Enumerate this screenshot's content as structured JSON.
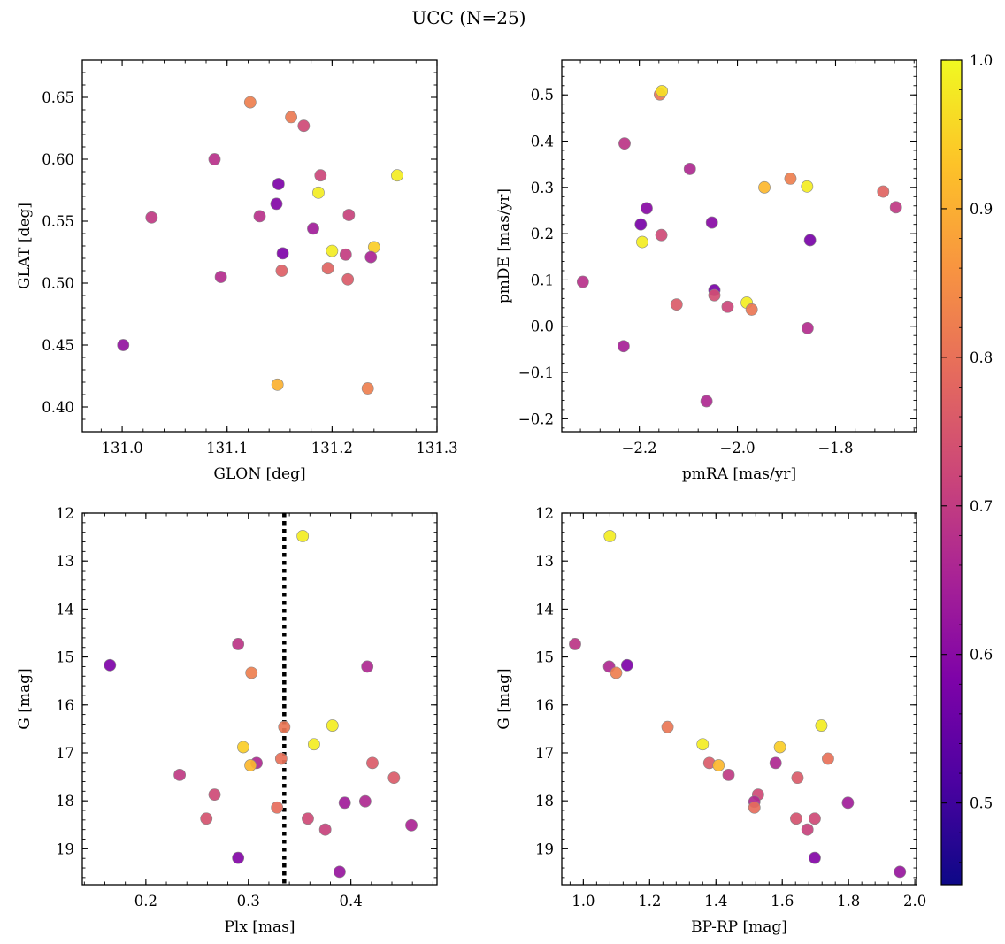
{
  "figure": {
    "title": "UCC (N=25)",
    "cmap": "plasma",
    "vmin": 0.445,
    "vmax": 1.0,
    "vline_plx": 0.335,
    "colors": {
      "point_edge": "#888888",
      "vline": "#000000",
      "frame": "#000000"
    }
  },
  "colorbar": {
    "ticks": [
      0.5,
      0.6,
      0.7,
      0.8,
      0.9,
      1.0
    ],
    "range": [
      0.445,
      1.0
    ]
  },
  "chart_data": [
    {
      "type": "scatter",
      "id": "lb",
      "xlabel": "GLON [deg]",
      "ylabel": "GLAT [deg]",
      "xlim": [
        130.962,
        131.3
      ],
      "ylim": [
        0.38,
        0.68
      ],
      "yinvert": false,
      "xticks": [
        131.0,
        131.1,
        131.2,
        131.3
      ],
      "xtick_labels": [
        "131.0",
        "131.1",
        "131.2",
        "131.3"
      ],
      "yticks": [
        0.4,
        0.45,
        0.5,
        0.55,
        0.6,
        0.65
      ],
      "ytick_labels": [
        "0.40",
        "0.45",
        "0.50",
        "0.55",
        "0.60",
        "0.65"
      ],
      "points": [
        {
          "x": 131.122,
          "y": 0.646,
          "c": 0.78
        },
        {
          "x": 131.161,
          "y": 0.634,
          "c": 0.77
        },
        {
          "x": 131.173,
          "y": 0.627,
          "c": 0.66
        },
        {
          "x": 131.088,
          "y": 0.6,
          "c": 0.6
        },
        {
          "x": 131.262,
          "y": 0.587,
          "c": 0.98
        },
        {
          "x": 131.189,
          "y": 0.587,
          "c": 0.65
        },
        {
          "x": 131.149,
          "y": 0.58,
          "c": 0.48
        },
        {
          "x": 131.187,
          "y": 0.573,
          "c": 0.98
        },
        {
          "x": 131.147,
          "y": 0.564,
          "c": 0.49
        },
        {
          "x": 131.216,
          "y": 0.555,
          "c": 0.64
        },
        {
          "x": 131.131,
          "y": 0.554,
          "c": 0.6
        },
        {
          "x": 131.028,
          "y": 0.553,
          "c": 0.62
        },
        {
          "x": 131.182,
          "y": 0.544,
          "c": 0.55
        },
        {
          "x": 131.24,
          "y": 0.529,
          "c": 0.93
        },
        {
          "x": 131.2,
          "y": 0.526,
          "c": 0.98
        },
        {
          "x": 131.153,
          "y": 0.524,
          "c": 0.48
        },
        {
          "x": 131.213,
          "y": 0.523,
          "c": 0.63
        },
        {
          "x": 131.237,
          "y": 0.521,
          "c": 0.57
        },
        {
          "x": 131.196,
          "y": 0.512,
          "c": 0.72
        },
        {
          "x": 131.152,
          "y": 0.51,
          "c": 0.71
        },
        {
          "x": 131.094,
          "y": 0.505,
          "c": 0.59
        },
        {
          "x": 131.215,
          "y": 0.503,
          "c": 0.7
        },
        {
          "x": 131.001,
          "y": 0.45,
          "c": 0.52
        },
        {
          "x": 131.148,
          "y": 0.418,
          "c": 0.88
        },
        {
          "x": 131.234,
          "y": 0.415,
          "c": 0.78
        }
      ]
    },
    {
      "type": "scatter",
      "id": "pm",
      "xlabel": "pmRA [mas/yr]",
      "ylabel": "pmDE [mas/yr]",
      "xlim": [
        -2.358,
        -1.635
      ],
      "ylim": [
        -0.228,
        0.575
      ],
      "yinvert": false,
      "xticks": [
        -2.2,
        -2.0,
        -1.8
      ],
      "xtick_labels": [
        "−2.2",
        "−2.0",
        "−1.8"
      ],
      "yticks": [
        -0.2,
        -0.1,
        0.0,
        0.1,
        0.2,
        0.3,
        0.4,
        0.5
      ],
      "ytick_labels": [
        "−0.2",
        "−0.1",
        "0.0",
        "0.1",
        "0.2",
        "0.3",
        "0.4",
        "0.5"
      ],
      "points": [
        {
          "x": -2.158,
          "y": 0.501,
          "c": 0.76
        },
        {
          "x": -2.154,
          "y": 0.508,
          "c": 0.96
        },
        {
          "x": -2.23,
          "y": 0.395,
          "c": 0.61
        },
        {
          "x": -2.097,
          "y": 0.34,
          "c": 0.58
        },
        {
          "x": -1.892,
          "y": 0.319,
          "c": 0.78
        },
        {
          "x": -1.945,
          "y": 0.3,
          "c": 0.89
        },
        {
          "x": -1.858,
          "y": 0.302,
          "c": 0.98
        },
        {
          "x": -1.703,
          "y": 0.291,
          "c": 0.72
        },
        {
          "x": -1.677,
          "y": 0.257,
          "c": 0.62
        },
        {
          "x": -2.185,
          "y": 0.255,
          "c": 0.5
        },
        {
          "x": -2.052,
          "y": 0.224,
          "c": 0.5
        },
        {
          "x": -2.197,
          "y": 0.22,
          "c": 0.47
        },
        {
          "x": -2.155,
          "y": 0.197,
          "c": 0.66
        },
        {
          "x": -2.194,
          "y": 0.182,
          "c": 0.98
        },
        {
          "x": -1.852,
          "y": 0.186,
          "c": 0.47
        },
        {
          "x": -2.047,
          "y": 0.078,
          "c": 0.47
        },
        {
          "x": -2.047,
          "y": 0.067,
          "c": 0.67
        },
        {
          "x": -2.315,
          "y": 0.096,
          "c": 0.6
        },
        {
          "x": -1.981,
          "y": 0.051,
          "c": 0.98
        },
        {
          "x": -2.124,
          "y": 0.047,
          "c": 0.7
        },
        {
          "x": -2.02,
          "y": 0.042,
          "c": 0.65
        },
        {
          "x": -1.971,
          "y": 0.036,
          "c": 0.76
        },
        {
          "x": -1.857,
          "y": -0.004,
          "c": 0.59
        },
        {
          "x": -2.232,
          "y": -0.043,
          "c": 0.56
        },
        {
          "x": -2.063,
          "y": -0.162,
          "c": 0.58
        }
      ]
    },
    {
      "type": "scatter",
      "id": "plx",
      "xlabel": "Plx [mas]",
      "ylabel": "G [mag]",
      "xlim": [
        0.138,
        0.484
      ],
      "ylim": [
        12.0,
        19.75
      ],
      "yinvert": true,
      "xticks": [
        0.2,
        0.3,
        0.4
      ],
      "xtick_labels": [
        "0.2",
        "0.3",
        "0.4"
      ],
      "yticks": [
        12,
        13,
        14,
        15,
        16,
        17,
        18,
        19
      ],
      "ytick_labels": [
        "12",
        "13",
        "14",
        "15",
        "16",
        "17",
        "18",
        "19"
      ],
      "points": [
        {
          "x": 0.353,
          "y": 12.48,
          "c": 0.98
        },
        {
          "x": 0.29,
          "y": 14.73,
          "c": 0.61
        },
        {
          "x": 0.165,
          "y": 15.17,
          "c": 0.48
        },
        {
          "x": 0.416,
          "y": 15.2,
          "c": 0.58
        },
        {
          "x": 0.303,
          "y": 15.33,
          "c": 0.78
        },
        {
          "x": 0.382,
          "y": 16.43,
          "c": 0.98
        },
        {
          "x": 0.335,
          "y": 16.46,
          "c": 0.76
        },
        {
          "x": 0.364,
          "y": 16.82,
          "c": 0.98
        },
        {
          "x": 0.295,
          "y": 16.88,
          "c": 0.93
        },
        {
          "x": 0.332,
          "y": 17.12,
          "c": 0.75
        },
        {
          "x": 0.308,
          "y": 17.21,
          "c": 0.58
        },
        {
          "x": 0.421,
          "y": 17.21,
          "c": 0.7
        },
        {
          "x": 0.302,
          "y": 17.26,
          "c": 0.89
        },
        {
          "x": 0.233,
          "y": 17.46,
          "c": 0.62
        },
        {
          "x": 0.442,
          "y": 17.52,
          "c": 0.7
        },
        {
          "x": 0.267,
          "y": 17.87,
          "c": 0.66
        },
        {
          "x": 0.414,
          "y": 18.01,
          "c": 0.58
        },
        {
          "x": 0.394,
          "y": 18.04,
          "c": 0.55
        },
        {
          "x": 0.328,
          "y": 18.14,
          "c": 0.74
        },
        {
          "x": 0.259,
          "y": 18.37,
          "c": 0.68
        },
        {
          "x": 0.358,
          "y": 18.37,
          "c": 0.66
        },
        {
          "x": 0.375,
          "y": 18.6,
          "c": 0.64
        },
        {
          "x": 0.459,
          "y": 18.51,
          "c": 0.57
        },
        {
          "x": 0.29,
          "y": 19.19,
          "c": 0.49
        },
        {
          "x": 0.389,
          "y": 19.48,
          "c": 0.53
        }
      ]
    },
    {
      "type": "scatter",
      "id": "cmd",
      "xlabel": "BP-RP [mag]",
      "ylabel": "G [mag]",
      "xlim": [
        0.935,
        2.005
      ],
      "ylim": [
        12.0,
        19.75
      ],
      "yinvert": true,
      "xticks": [
        1.0,
        1.2,
        1.4,
        1.6,
        1.8,
        2.0
      ],
      "xtick_labels": [
        "1.0",
        "1.2",
        "1.4",
        "1.6",
        "1.8",
        "2.0"
      ],
      "yticks": [
        12,
        13,
        14,
        15,
        16,
        17,
        18,
        19
      ],
      "ytick_labels": [
        "12",
        "13",
        "14",
        "15",
        "16",
        "17",
        "18",
        "19"
      ],
      "points": [
        {
          "x": 1.08,
          "y": 12.48,
          "c": 0.98
        },
        {
          "x": 0.975,
          "y": 14.73,
          "c": 0.61
        },
        {
          "x": 1.078,
          "y": 15.2,
          "c": 0.58
        },
        {
          "x": 1.132,
          "y": 15.17,
          "c": 0.48
        },
        {
          "x": 1.099,
          "y": 15.33,
          "c": 0.78
        },
        {
          "x": 1.254,
          "y": 16.46,
          "c": 0.76
        },
        {
          "x": 1.718,
          "y": 16.43,
          "c": 0.98
        },
        {
          "x": 1.36,
          "y": 16.82,
          "c": 0.98
        },
        {
          "x": 1.593,
          "y": 16.88,
          "c": 0.93
        },
        {
          "x": 1.738,
          "y": 17.12,
          "c": 0.75
        },
        {
          "x": 1.38,
          "y": 17.21,
          "c": 0.7
        },
        {
          "x": 1.58,
          "y": 17.21,
          "c": 0.58
        },
        {
          "x": 1.408,
          "y": 17.26,
          "c": 0.89
        },
        {
          "x": 1.438,
          "y": 17.46,
          "c": 0.62
        },
        {
          "x": 1.646,
          "y": 17.52,
          "c": 0.7
        },
        {
          "x": 1.527,
          "y": 17.87,
          "c": 0.66
        },
        {
          "x": 1.516,
          "y": 18.02,
          "c": 0.58
        },
        {
          "x": 1.798,
          "y": 18.04,
          "c": 0.55
        },
        {
          "x": 1.516,
          "y": 18.14,
          "c": 0.74
        },
        {
          "x": 1.642,
          "y": 18.37,
          "c": 0.68
        },
        {
          "x": 1.698,
          "y": 18.37,
          "c": 0.66
        },
        {
          "x": 1.676,
          "y": 18.6,
          "c": 0.64
        },
        {
          "x": 1.698,
          "y": 19.19,
          "c": 0.49
        },
        {
          "x": 1.955,
          "y": 19.48,
          "c": 0.53
        }
      ]
    }
  ]
}
